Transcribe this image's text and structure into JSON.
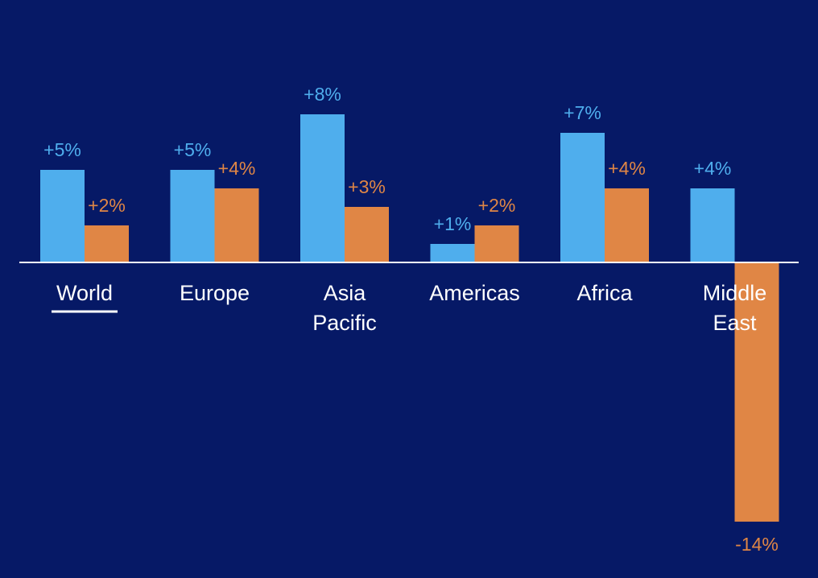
{
  "chart_data": {
    "type": "bar",
    "title": "",
    "xlabel": "",
    "ylabel": "",
    "categories": [
      [
        "World"
      ],
      [
        "Europe"
      ],
      [
        "Asia",
        "Pacific"
      ],
      [
        "Americas"
      ],
      [
        "Africa"
      ],
      [
        "Middle",
        "East"
      ]
    ],
    "highlighted_category": "World",
    "series": [
      {
        "color": "#4faeed",
        "values": [
          5,
          5,
          8,
          1,
          7,
          4
        ],
        "labels": [
          "+5%",
          "+5%",
          "+8%",
          "+1%",
          "+7%",
          "+4%"
        ]
      },
      {
        "color": "#e08645",
        "values": [
          2,
          4,
          3,
          2,
          4,
          -14
        ],
        "labels": [
          "+2%",
          "+4%",
          "+3%",
          "+2%",
          "+4%",
          "-14%"
        ]
      }
    ],
    "ylim": [
      -14,
      8
    ],
    "grid": false,
    "legend": "none",
    "colors": {
      "background": "#061966",
      "axis": "#ffffff",
      "category_text": "#ffffff"
    }
  }
}
